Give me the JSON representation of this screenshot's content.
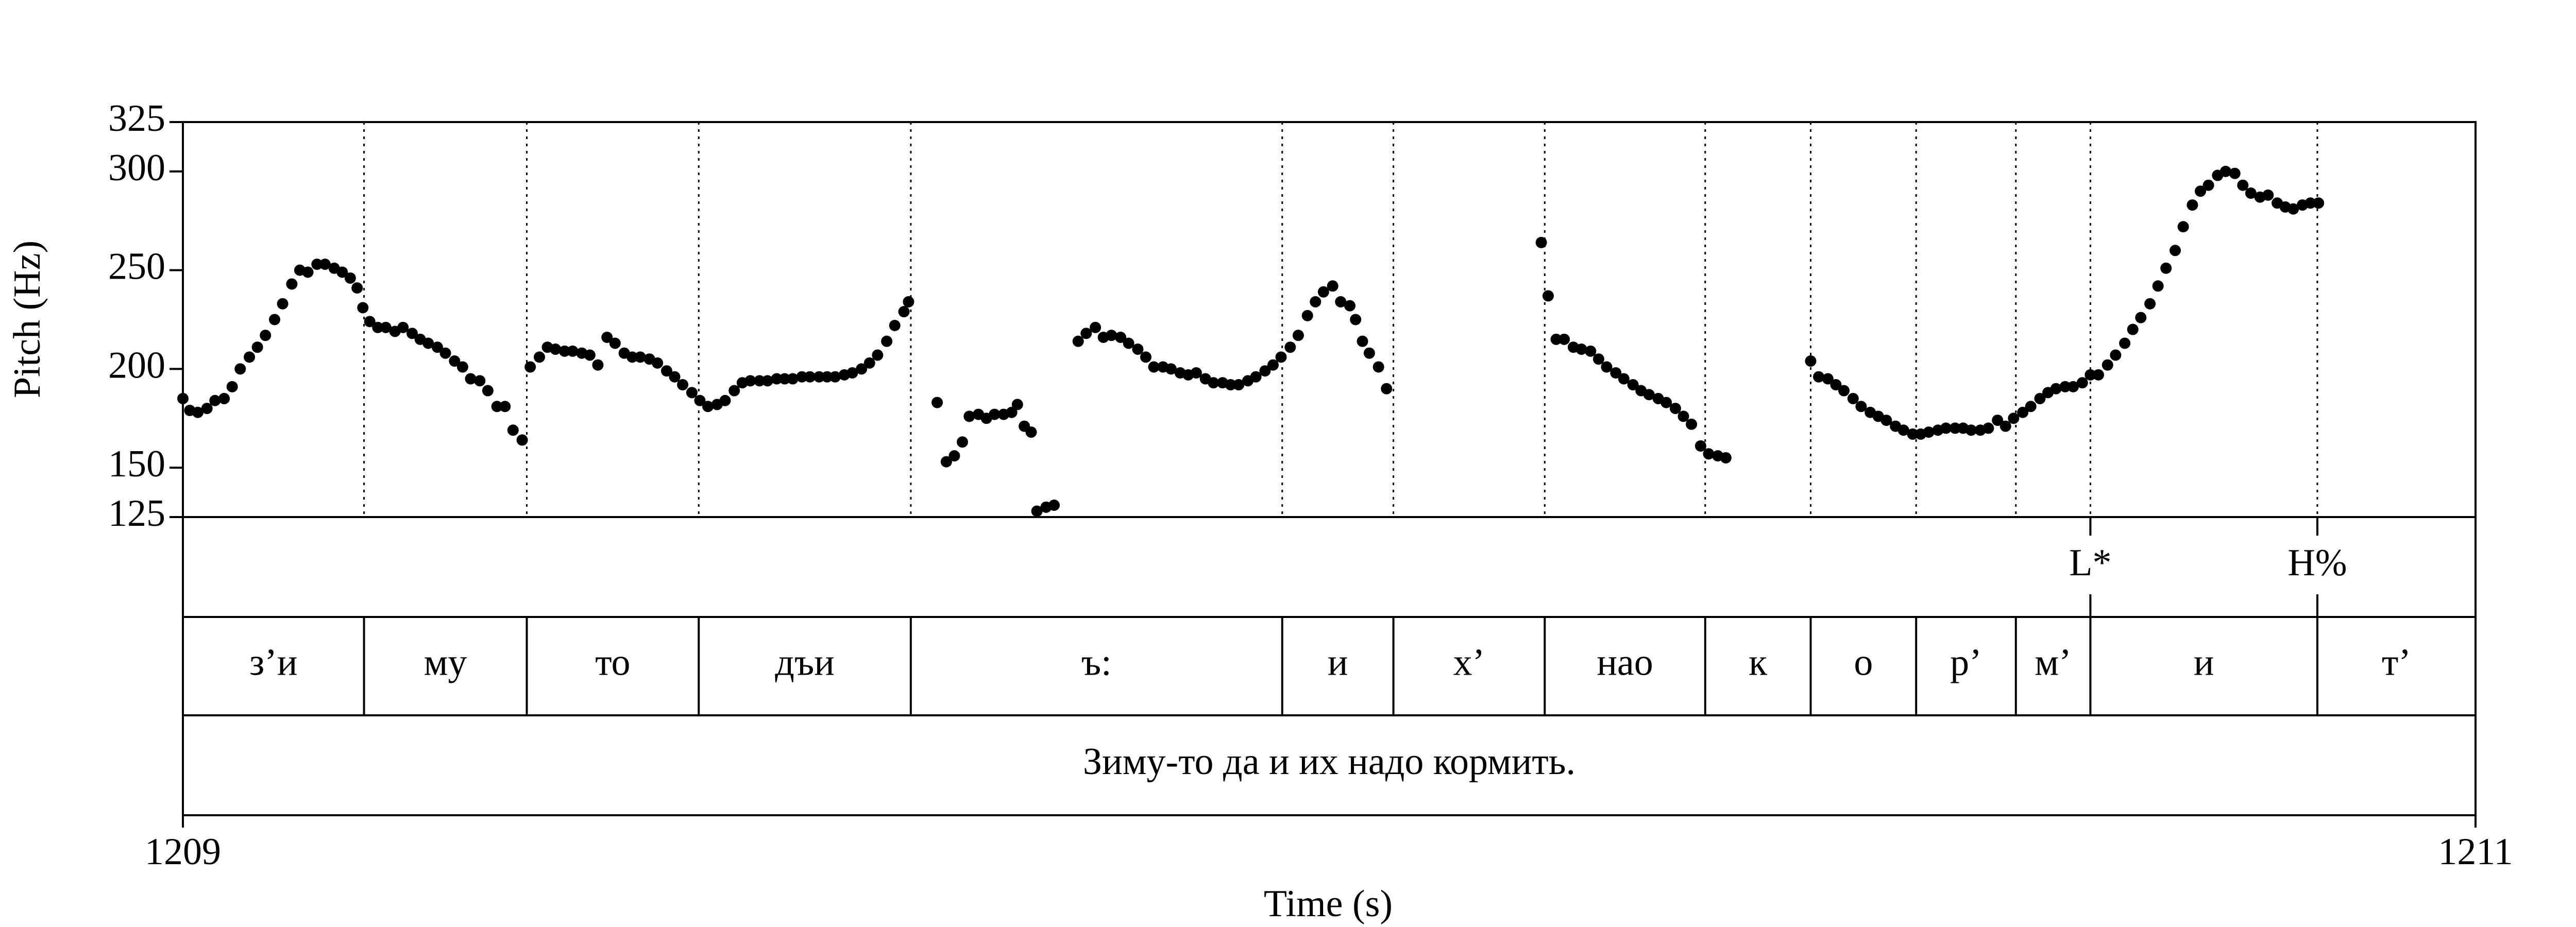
{
  "chart_data": {
    "type": "scatter",
    "xlabel": "Time (s)",
    "ylabel": "Pitch (Hz)",
    "xlim": [
      1209,
      1211
    ],
    "xticks": [
      1209,
      1211
    ],
    "ylim": [
      125,
      325
    ],
    "yticks": [
      125,
      150,
      200,
      250,
      300,
      325
    ],
    "color": "#000000",
    "x": [
      1209.0,
      1209.006,
      1209.013,
      1209.021,
      1209.028,
      1209.036,
      1209.043,
      1209.05,
      1209.058,
      1209.065,
      1209.072,
      1209.08,
      1209.087,
      1209.095,
      1209.102,
      1209.109,
      1209.117,
      1209.124,
      1209.132,
      1209.139,
      1209.146,
      1209.152,
      1209.157,
      1209.163,
      1209.17,
      1209.177,
      1209.185,
      1209.192,
      1209.2,
      1209.207,
      1209.214,
      1209.222,
      1209.229,
      1209.237,
      1209.244,
      1209.251,
      1209.259,
      1209.266,
      1209.274,
      1209.281,
      1209.288,
      1209.296,
      1209.303,
      1209.311,
      1209.318,
      1209.325,
      1209.333,
      1209.34,
      1209.348,
      1209.355,
      1209.362,
      1209.37,
      1209.377,
      1209.385,
      1209.392,
      1209.399,
      1209.407,
      1209.414,
      1209.422,
      1209.429,
      1209.436,
      1209.444,
      1209.451,
      1209.458,
      1209.466,
      1209.473,
      1209.481,
      1209.488,
      1209.495,
      1209.503,
      1209.51,
      1209.518,
      1209.525,
      1209.532,
      1209.54,
      1209.547,
      1209.555,
      1209.562,
      1209.569,
      1209.577,
      1209.584,
      1209.592,
      1209.599,
      1209.606,
      1209.614,
      1209.621,
      1209.629,
      1209.633,
      1209.658,
      1209.666,
      1209.673,
      1209.68,
      1209.686,
      1209.694,
      1209.701,
      1209.708,
      1209.716,
      1209.723,
      1209.728,
      1209.734,
      1209.74,
      1209.745,
      1209.753,
      1209.76,
      1209.781,
      1209.788,
      1209.796,
      1209.803,
      1209.81,
      1209.818,
      1209.825,
      1209.833,
      1209.84,
      1209.847,
      1209.855,
      1209.862,
      1209.87,
      1209.877,
      1209.884,
      1209.892,
      1209.899,
      1209.907,
      1209.914,
      1209.921,
      1209.929,
      1209.936,
      1209.944,
      1209.951,
      1209.958,
      1209.966,
      1209.973,
      1209.981,
      1209.988,
      1209.995,
      1210.003,
      1210.01,
      1210.018,
      1210.023,
      1210.029,
      1210.035,
      1210.043,
      1210.05,
      1210.185,
      1210.191,
      1210.198,
      1210.205,
      1210.213,
      1210.22,
      1210.228,
      1210.235,
      1210.242,
      1210.25,
      1210.257,
      1210.265,
      1210.272,
      1210.279,
      1210.287,
      1210.294,
      1210.302,
      1210.309,
      1210.316,
      1210.324,
      1210.331,
      1210.339,
      1210.346,
      1210.42,
      1210.427,
      1210.435,
      1210.442,
      1210.449,
      1210.457,
      1210.464,
      1210.472,
      1210.479,
      1210.486,
      1210.494,
      1210.501,
      1210.509,
      1210.516,
      1210.523,
      1210.531,
      1210.538,
      1210.546,
      1210.553,
      1210.56,
      1210.568,
      1210.575,
      1210.583,
      1210.59,
      1210.597,
      1210.605,
      1210.612,
      1210.62,
      1210.627,
      1210.634,
      1210.642,
      1210.649,
      1210.657,
      1210.664,
      1210.671,
      1210.679,
      1210.686,
      1210.694,
      1210.701,
      1210.708,
      1210.716,
      1210.723,
      1210.73,
      1210.738,
      1210.745,
      1210.753,
      1210.76,
      1210.767,
      1210.775,
      1210.782,
      1210.79,
      1210.797,
      1210.804,
      1210.812,
      1210.819,
      1210.827,
      1210.834,
      1210.841,
      1210.849,
      1210.856,
      1210.863
    ],
    "values": [
      185,
      179,
      178,
      180,
      184,
      185,
      191,
      200,
      206,
      211,
      217,
      225,
      233,
      243,
      250,
      249,
      253,
      253,
      251,
      249,
      246,
      241,
      231,
      224,
      221,
      221,
      219,
      221,
      218,
      215,
      213,
      211,
      208,
      204,
      201,
      195,
      194,
      189,
      181,
      181,
      169,
      164,
      201,
      206,
      211,
      210,
      209,
      209,
      208,
      207,
      202,
      216,
      213,
      208,
      206,
      206,
      205,
      203,
      199,
      196,
      192,
      188,
      184,
      181,
      182,
      184,
      189,
      193,
      194,
      194,
      194,
      195,
      195,
      195,
      196,
      196,
      196,
      196,
      196,
      197,
      198,
      200,
      203,
      207,
      214,
      222,
      229,
      234,
      183,
      153,
      156,
      163,
      176,
      177,
      175,
      177,
      177,
      178,
      182,
      171,
      168,
      128,
      130,
      131,
      214,
      218,
      221,
      216,
      217,
      216,
      213,
      210,
      206,
      201,
      201,
      200,
      198,
      197,
      198,
      195,
      193,
      193,
      192,
      192,
      194,
      196,
      199,
      202,
      206,
      211,
      217,
      227,
      234,
      239,
      242,
      234,
      232,
      225,
      214,
      208,
      201,
      190,
      264,
      237,
      215,
      215,
      211,
      210,
      209,
      205,
      201,
      198,
      195,
      192,
      189,
      187,
      185,
      183,
      180,
      176,
      172,
      161,
      157,
      156,
      155,
      204,
      196,
      195,
      192,
      189,
      185,
      181,
      178,
      176,
      174,
      171,
      169,
      167,
      167,
      168,
      169,
      170,
      170,
      170,
      169,
      169,
      170,
      174,
      171,
      175,
      178,
      181,
      185,
      188,
      190,
      191,
      191,
      193,
      197,
      197,
      202,
      207,
      213,
      220,
      226,
      233,
      242,
      251,
      260,
      272,
      283,
      290,
      293,
      298,
      300,
      299,
      293,
      289,
      287,
      288,
      284,
      282,
      281,
      283,
      284,
      284
    ],
    "tone_tier": {
      "times": [
        1210.664,
        1210.862
      ],
      "labels": [
        "L*",
        "H%"
      ]
    },
    "segment_tier": {
      "boundaries": [
        1209.158,
        1209.3,
        1209.45,
        1209.635,
        1209.959,
        1210.056,
        1210.188,
        1210.328,
        1210.42,
        1210.512,
        1210.599,
        1210.664,
        1210.862
      ],
      "labels": [
        "з’и",
        "му",
        "то",
        "дъи",
        "ъ:",
        "и",
        "х’",
        "нао",
        "к",
        "о",
        "р’",
        "м’",
        "и",
        "т’"
      ]
    },
    "sentence_tier": {
      "label": "Зиму-то да и их надо кормить."
    }
  }
}
